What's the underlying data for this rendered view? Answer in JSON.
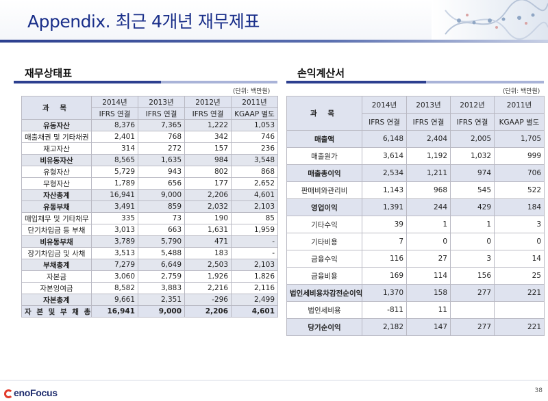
{
  "page": {
    "title": "Appendix. 최근 4개년 재무제표",
    "page_number": "38"
  },
  "colors": {
    "title": "#1a2f8a",
    "header_fill": "#dfe3ef",
    "bar_navy": "#2c3f8f",
    "bar_light": "#a9b3d8"
  },
  "balance_sheet": {
    "title": "재무상태표",
    "unit": "(단위: 백만원)",
    "corner": "과 목",
    "years": [
      "2014년",
      "2013년",
      "2012년",
      "2011년"
    ],
    "bases": [
      "IFRS 연결",
      "IFRS 연결",
      "IFRS 연결",
      "KGAAP 별도"
    ],
    "rows": [
      {
        "label": "유동자산",
        "values": [
          "8,376",
          "7,365",
          "1,222",
          "1,053"
        ]
      },
      {
        "label": "매출채권 및 기타채권",
        "values": [
          "2,401",
          "768",
          "342",
          "746"
        ]
      },
      {
        "label": "재고자산",
        "values": [
          "314",
          "272",
          "157",
          "236"
        ]
      },
      {
        "label": "비유동자산",
        "values": [
          "8,565",
          "1,635",
          "984",
          "3,548"
        ]
      },
      {
        "label": "유형자산",
        "values": [
          "5,729",
          "943",
          "802",
          "868"
        ]
      },
      {
        "label": "무형자산",
        "values": [
          "1,789",
          "656",
          "177",
          "2,652"
        ]
      },
      {
        "label": "자산총계",
        "values": [
          "16,941",
          "9,000",
          "2,206",
          "4,601"
        ]
      },
      {
        "label": "유동부채",
        "values": [
          "3,491",
          "859",
          "2,032",
          "2,103"
        ]
      },
      {
        "label": "매입채무 및 기타채무",
        "values": [
          "335",
          "73",
          "190",
          "85"
        ]
      },
      {
        "label": "단기차입금 등 부채",
        "values": [
          "3,013",
          "663",
          "1,631",
          "1,959"
        ]
      },
      {
        "label": "비유동부채",
        "values": [
          "3,789",
          "5,790",
          "471",
          "-"
        ]
      },
      {
        "label": "장기차입금 및 사채",
        "values": [
          "3,513",
          "5,488",
          "183",
          "-"
        ]
      },
      {
        "label": "부채총계",
        "values": [
          "7,279",
          "6,649",
          "2,503",
          "2,103"
        ]
      },
      {
        "label": "자본금",
        "values": [
          "3,060",
          "2,759",
          "1,926",
          "1,826"
        ]
      },
      {
        "label": "자본잉여금",
        "values": [
          "8,582",
          "3,883",
          "2,216",
          "2,116"
        ]
      },
      {
        "label": "자본총계",
        "values": [
          "9,661",
          "2,351",
          "-296",
          "2,499"
        ]
      },
      {
        "label": "자 본 및 부 채 총 계",
        "values": [
          "16,941",
          "9,000",
          "2,206",
          "4,601"
        ]
      }
    ]
  },
  "income_statement": {
    "title": "손익계산서",
    "unit": "(단위: 백만원)",
    "corner": "과 목",
    "years": [
      "2014년",
      "2013년",
      "2012년",
      "2011년"
    ],
    "bases": [
      "IFRS 연결",
      "IFRS 연결",
      "IFRS 연결",
      "KGAAP 별도"
    ],
    "rows": [
      {
        "label": "매출액",
        "values": [
          "6,148",
          "2,404",
          "2,005",
          "1,705"
        ]
      },
      {
        "label": "매출원가",
        "values": [
          "3,614",
          "1,192",
          "1,032",
          "999"
        ]
      },
      {
        "label": "매출총이익",
        "values": [
          "2,534",
          "1,211",
          "974",
          "706"
        ]
      },
      {
        "label": "판매비와관리비",
        "values": [
          "1,143",
          "968",
          "545",
          "522"
        ]
      },
      {
        "label": "영업이익",
        "values": [
          "1,391",
          "244",
          "429",
          "184"
        ]
      },
      {
        "label": "기타수익",
        "values": [
          "39",
          "1",
          "1",
          "3"
        ]
      },
      {
        "label": "기타비용",
        "values": [
          "7",
          "0",
          "0",
          "0"
        ]
      },
      {
        "label": "금융수익",
        "values": [
          "116",
          "27",
          "3",
          "14"
        ]
      },
      {
        "label": "금융비용",
        "values": [
          "169",
          "114",
          "156",
          "25"
        ]
      },
      {
        "label": "법인세비용차감전순이익",
        "values": [
          "1,370",
          "158",
          "277",
          "221"
        ]
      },
      {
        "label": "법인세비용",
        "values": [
          "-811",
          "11",
          "",
          ""
        ]
      },
      {
        "label": "당기순이익",
        "values": [
          "2,182",
          "147",
          "277",
          "221"
        ]
      }
    ]
  },
  "footer": {
    "logo_text": "enoFocus"
  }
}
